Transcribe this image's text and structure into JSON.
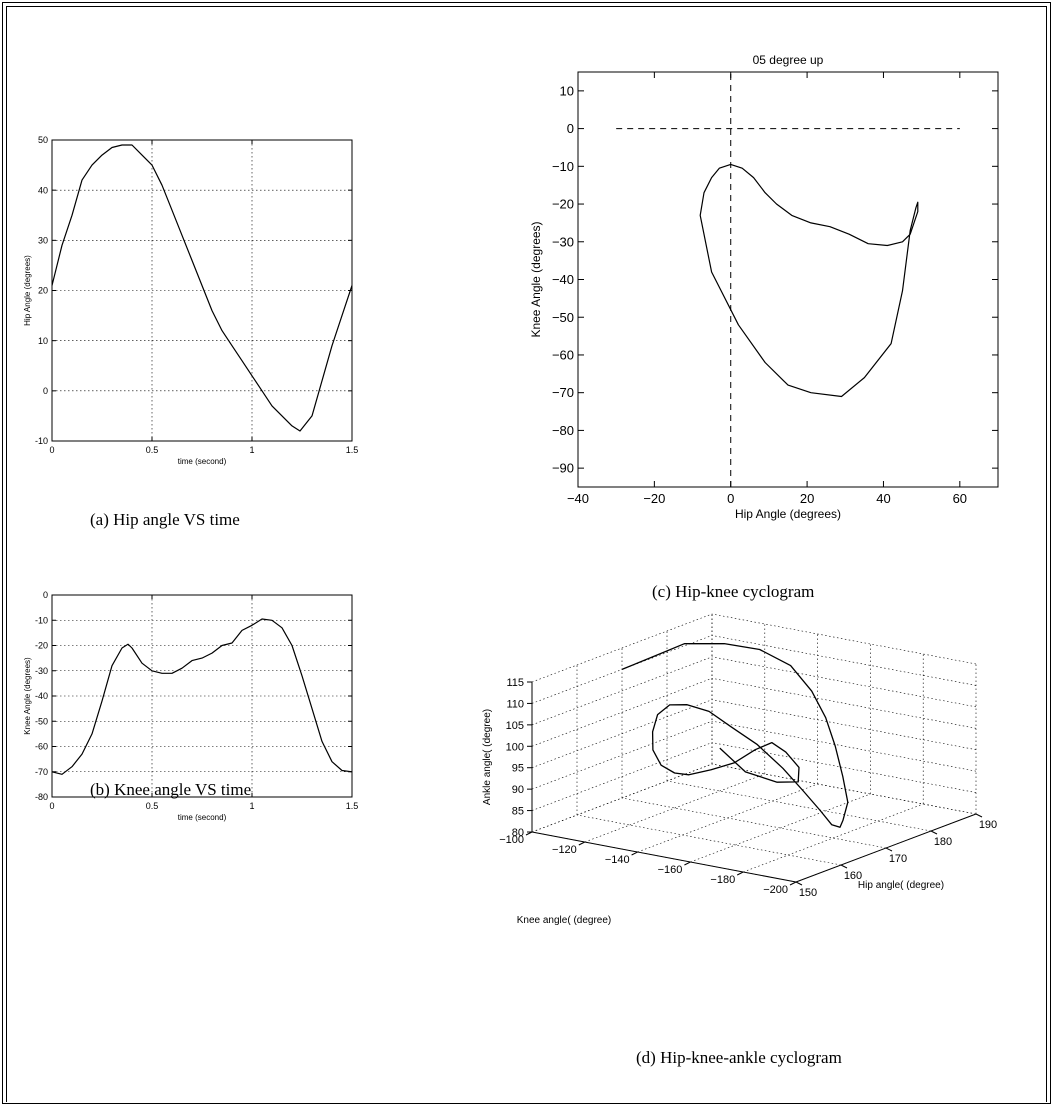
{
  "chart_data": [
    {
      "id": "a",
      "type": "line",
      "caption": "(a) Hip angle VS time",
      "xlabel": "time (second)",
      "ylabel": "Hip Angle (degrees)",
      "xlim": [
        0,
        1.5
      ],
      "ylim": [
        -10,
        50
      ],
      "xticks": [
        0,
        0.5,
        1,
        1.5
      ],
      "xtick_labels": [
        "0",
        "0.5",
        "1",
        "1.5"
      ],
      "yticks": [
        -10,
        0,
        10,
        20,
        30,
        40,
        50
      ],
      "grid": true,
      "series": [
        {
          "x": [
            0,
            0.05,
            0.1,
            0.15,
            0.2,
            0.25,
            0.3,
            0.35,
            0.4,
            0.45,
            0.5,
            0.55,
            0.6,
            0.65,
            0.7,
            0.75,
            0.8,
            0.85,
            0.9,
            0.95,
            1.0,
            1.05,
            1.1,
            1.15,
            1.2,
            1.24,
            1.3,
            1.35,
            1.4,
            1.45,
            1.5
          ],
          "y": [
            21,
            29,
            35,
            42,
            45,
            47,
            48.5,
            49,
            49,
            47,
            45,
            41,
            36,
            31,
            26,
            21,
            16,
            12,
            9,
            6,
            3,
            0,
            -3,
            -5,
            -7,
            -8,
            -5,
            2,
            9,
            15,
            21
          ]
        }
      ]
    },
    {
      "id": "b",
      "type": "line",
      "caption": "(b) Knee angle VS time",
      "xlabel": "time (second)",
      "ylabel": "Knee  Angle (degrees)",
      "xlim": [
        0,
        1.5
      ],
      "ylim": [
        -80,
        0
      ],
      "xticks": [
        0,
        0.5,
        1,
        1.5
      ],
      "xtick_labels": [
        "0",
        "0.5",
        "1",
        "1.5"
      ],
      "yticks": [
        -80,
        -70,
        -60,
        -50,
        -40,
        -30,
        -20,
        -10,
        0
      ],
      "grid": true,
      "series": [
        {
          "x": [
            0,
            0.05,
            0.1,
            0.15,
            0.2,
            0.25,
            0.3,
            0.35,
            0.38,
            0.4,
            0.45,
            0.5,
            0.55,
            0.6,
            0.65,
            0.7,
            0.75,
            0.8,
            0.85,
            0.9,
            0.95,
            1.0,
            1.05,
            1.1,
            1.15,
            1.2,
            1.25,
            1.3,
            1.35,
            1.4,
            1.45,
            1.5
          ],
          "y": [
            -70,
            -71,
            -68,
            -63,
            -55,
            -42,
            -28,
            -21,
            -19.5,
            -21,
            -27,
            -30,
            -31,
            -31,
            -29,
            -26,
            -25,
            -23,
            -20,
            -19,
            -14,
            -12,
            -9.5,
            -10,
            -13,
            -20,
            -32,
            -45,
            -58,
            -66,
            -69.5,
            -70
          ]
        }
      ]
    },
    {
      "id": "c",
      "type": "line",
      "caption": "(c) Hip-knee cyclogram",
      "title": "05 degree up",
      "xlabel": "Hip Angle (degrees)",
      "ylabel": "Knee Angle (degrees)",
      "xlim": [
        -40,
        70
      ],
      "ylim": [
        -95,
        15
      ],
      "xticks": [
        -40,
        -20,
        0,
        20,
        40,
        60
      ],
      "xtick_labels": [
        "−40",
        "−20",
        "0",
        "20",
        "40",
        "60"
      ],
      "yticks": [
        -90,
        -80,
        -70,
        -60,
        -50,
        -40,
        -30,
        -20,
        -10,
        0,
        10
      ],
      "ytick_labels": [
        "−90",
        "−80",
        "−70",
        "−60",
        "−50",
        "−40",
        "−30",
        "−20",
        "−10",
        "0",
        "10"
      ],
      "grid": false,
      "series": [
        {
          "x": [
            21,
            29,
            35,
            42,
            45,
            47,
            48.5,
            49,
            49,
            47,
            45,
            41,
            36,
            31,
            26,
            21,
            16,
            12,
            9,
            6,
            3,
            0,
            -3,
            -5,
            -7,
            -8,
            -5,
            2,
            9,
            15,
            21
          ],
          "y": [
            -70,
            -71,
            -66,
            -57,
            -43,
            -27,
            -21,
            -19.5,
            -22,
            -28,
            -30,
            -31,
            -30.5,
            -28,
            -26,
            -25,
            -23,
            -20,
            -17,
            -13,
            -10.5,
            -9.5,
            -10.5,
            -13,
            -17,
            -23,
            -38,
            -52,
            -62,
            -68,
            -70
          ]
        }
      ],
      "reference_lines": [
        {
          "orientation": "horizontal",
          "y": 0,
          "x_range": [
            -30,
            60
          ],
          "style": "dashed"
        },
        {
          "orientation": "vertical",
          "x": 0,
          "y_range": [
            -95,
            15
          ],
          "style": "dashed"
        }
      ]
    },
    {
      "id": "d",
      "type": "line",
      "caption": "(d) Hip-knee-ankle cyclogram",
      "xlabel": "Hip angle( (degree)",
      "ylabel": "Knee angle( (degree)",
      "zlabel": "Ankle angle( (degree)",
      "xlim": [
        150,
        190
      ],
      "ylim": [
        -200,
        -100
      ],
      "zlim": [
        80,
        115
      ],
      "xticks": [
        150,
        160,
        170,
        180,
        190
      ],
      "yticks": [
        -200,
        -180,
        -160,
        -140,
        -120,
        -100
      ],
      "ytick_labels": [
        "−200",
        "−180",
        "−160",
        "−140",
        "−120",
        "−100"
      ],
      "zticks": [
        80,
        85,
        90,
        95,
        100,
        105,
        110,
        115
      ],
      "grid": true,
      "series": [
        {
          "x": [
            170,
            174,
            178,
            181,
            183,
            184,
            184,
            183,
            181,
            178,
            175,
            171,
            168,
            165,
            163,
            161,
            160,
            159,
            159,
            160,
            161,
            163,
            165,
            168,
            171,
            174,
            177,
            179,
            181,
            182,
            182,
            181,
            180,
            180,
            181,
            181,
            181,
            180
          ],
          "y": [
            -100,
            -105,
            -110,
            -120,
            -130,
            -140,
            -148,
            -155,
            -162,
            -170,
            -177,
            -182,
            -186,
            -188,
            -187,
            -184,
            -178,
            -170,
            -160,
            -150,
            -140,
            -130,
            -122,
            -115,
            -110,
            -108,
            -108,
            -110,
            -115,
            -122,
            -130,
            -138,
            -145,
            -150,
            -148,
            -140,
            -128,
            -120
          ],
          "z": [
            110,
            112,
            114,
            114,
            113,
            110,
            105,
            100,
            95,
            90,
            86,
            84,
            84,
            86,
            90,
            95,
            100,
            105,
            108,
            110,
            110,
            108,
            104,
            98,
            92,
            87,
            84,
            83,
            84,
            86,
            90,
            93,
            92,
            89,
            85,
            84,
            85,
            90
          ]
        }
      ]
    }
  ]
}
